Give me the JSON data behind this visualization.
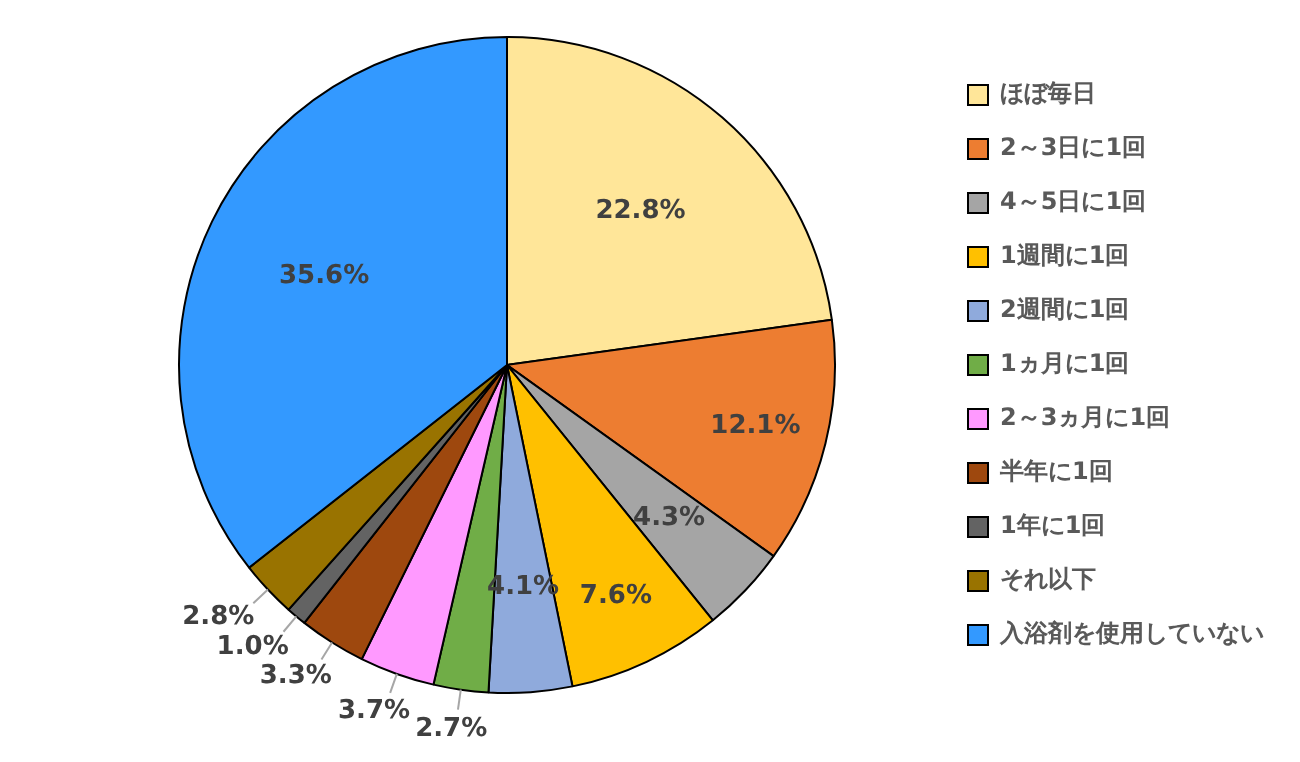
{
  "chart_data": {
    "type": "pie",
    "categories": [
      "ほぼ毎日",
      "2～3日に1回",
      "4～5日に1回",
      "1週間に1回",
      "2週間に1回",
      "1ヵ月に1回",
      "2～3ヵ月に1回",
      "半年に1回",
      "1年に1回",
      "それ以下",
      "入浴剤を使用していない"
    ],
    "values": [
      22.8,
      12.1,
      4.3,
      7.6,
      4.1,
      2.7,
      3.7,
      3.3,
      1.0,
      2.8,
      35.6
    ],
    "value_labels": [
      "22.8%",
      "12.1%",
      "4.3%",
      "7.6%",
      "4.1%",
      "2.7%",
      "3.7%",
      "3.3%",
      "1.0%",
      "2.8%",
      "35.6%"
    ],
    "colors": [
      "#ffe699",
      "#ed7d31",
      "#a5a5a5",
      "#ffc000",
      "#8faadc",
      "#70ad47",
      "#ff99ff",
      "#9e480e",
      "#636363",
      "#997300",
      "#3399ff"
    ],
    "legend": "right"
  }
}
